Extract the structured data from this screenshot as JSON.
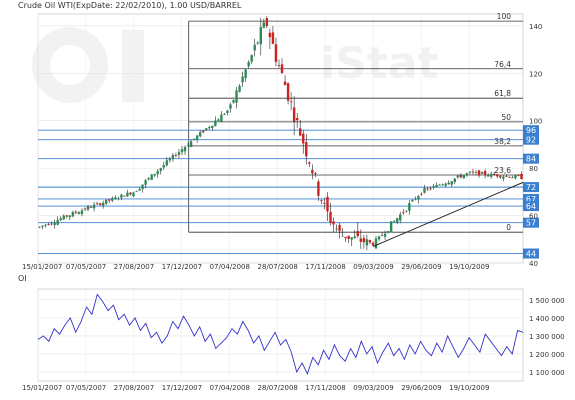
{
  "chart_data": [
    {
      "type": "candlestick",
      "title": "Crude Oil WTI(ExpDate: 22/02/2010), 1.00 USD/BARREL",
      "x_ticks": [
        "15/01/2007",
        "07/05/2007",
        "27/08/2007",
        "17/12/2007",
        "07/04/2008",
        "28/07/2008",
        "17/11/2008",
        "09/03/2009",
        "29/06/2009",
        "19/10/2009"
      ],
      "y_ticks": [
        40,
        60,
        80,
        100,
        120,
        140
      ],
      "ylim": [
        40,
        145
      ],
      "grid": true,
      "watermark": "OiStat",
      "price_path": [
        [
          "15/01/2007",
          55
        ],
        [
          "07/05/2007",
          63
        ],
        [
          "27/08/2007",
          70
        ],
        [
          "17/12/2007",
          88
        ],
        [
          "07/04/2008",
          105
        ],
        [
          "01/07/2008",
          142
        ],
        [
          "28/07/2008",
          125
        ],
        [
          "17/11/2008",
          62
        ],
        [
          "22/12/2008",
          52
        ],
        [
          "09/03/2009",
          48
        ],
        [
          "29/06/2009",
          70
        ],
        [
          "19/10/2009",
          78
        ],
        [
          "22/02/2010",
          76
        ]
      ],
      "fibonacci": [
        {
          "label": "100",
          "price": 142
        },
        {
          "label": "76,4",
          "price": 121.9
        },
        {
          "label": "61,8",
          "price": 109.5
        },
        {
          "label": "50",
          "price": 99.5
        },
        {
          "label": "38,2",
          "price": 89.4
        },
        {
          "label": "23,6",
          "price": 77.1
        },
        {
          "label": "0",
          "price": 57.0
        }
      ],
      "levels": [
        {
          "label": "96",
          "price": 96
        },
        {
          "label": "92",
          "price": 92
        },
        {
          "label": "84",
          "price": 84
        },
        {
          "label": "72",
          "price": 72
        },
        {
          "label": "67",
          "price": 67
        },
        {
          "label": "64",
          "price": 64
        },
        {
          "label": "57",
          "price": 57
        },
        {
          "label": "44",
          "price": 44
        }
      ],
      "trendline": [
        [
          "09/03/2009",
          47
        ],
        [
          "22/02/2010",
          74
        ]
      ],
      "colors": {
        "up": "#2e8b57",
        "down": "#cc2222",
        "level": "#3a7fd0",
        "fib": "#333333"
      }
    },
    {
      "type": "line",
      "title": "OI",
      "x_ticks": [
        "15/01/2007",
        "07/05/2007",
        "27/08/2007",
        "17/12/2007",
        "07/04/2008",
        "28/07/2008",
        "17/11/2008",
        "09/03/2009",
        "29/06/2009",
        "19/10/2009"
      ],
      "y_ticks": [
        "1 100 000",
        "1 200 000",
        "1 300 000",
        "1 400 000",
        "1 500 000"
      ],
      "ylim": [
        1050000,
        1560000
      ],
      "series": [
        {
          "color": "#3333cc",
          "values": [
            1280000,
            1300000,
            1270000,
            1340000,
            1310000,
            1360000,
            1400000,
            1320000,
            1380000,
            1460000,
            1420000,
            1530000,
            1490000,
            1440000,
            1470000,
            1390000,
            1420000,
            1360000,
            1400000,
            1330000,
            1370000,
            1290000,
            1320000,
            1260000,
            1300000,
            1380000,
            1340000,
            1410000,
            1360000,
            1300000,
            1350000,
            1270000,
            1310000,
            1230000,
            1260000,
            1290000,
            1340000,
            1310000,
            1380000,
            1330000,
            1260000,
            1300000,
            1220000,
            1270000,
            1320000,
            1250000,
            1280000,
            1210000,
            1100000,
            1150000,
            1090000,
            1180000,
            1140000,
            1220000,
            1170000,
            1250000,
            1190000,
            1160000,
            1230000,
            1180000,
            1270000,
            1200000,
            1240000,
            1150000,
            1210000,
            1260000,
            1190000,
            1230000,
            1170000,
            1250000,
            1200000,
            1270000,
            1220000,
            1190000,
            1260000,
            1210000,
            1300000,
            1240000,
            1180000,
            1230000,
            1290000,
            1250000,
            1210000,
            1310000,
            1270000,
            1230000,
            1190000,
            1240000,
            1200000,
            1330000,
            1320000
          ]
        }
      ]
    }
  ]
}
